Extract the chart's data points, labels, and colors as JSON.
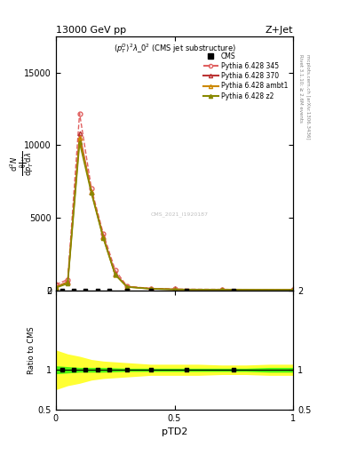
{
  "title": "13000 GeV pp",
  "title_right": "Z+Jet",
  "subtitle": "$(p_T^D)^2\\lambda\\_0^2$ (CMS jet substructure)",
  "xlabel": "pTD2",
  "ylabel_ratio": "Ratio to CMS",
  "right_label_top": "Rivet 3.1.10; ≥ 2.6M events",
  "right_label_bot": "mcplots.cern.ch [arXiv:1306.3436]",
  "watermark": "CMS_2021_I1920187",
  "py345_x": [
    0.0,
    0.05,
    0.1,
    0.15,
    0.2,
    0.25,
    0.3,
    0.4,
    0.5,
    0.7,
    1.0
  ],
  "py345_y": [
    400,
    750,
    12200,
    7000,
    3900,
    1400,
    280,
    140,
    90,
    75,
    55
  ],
  "py370_x": [
    0.0,
    0.05,
    0.1,
    0.15,
    0.2,
    0.25,
    0.3,
    0.4,
    0.5,
    0.7,
    1.0
  ],
  "py370_y": [
    250,
    600,
    10800,
    6800,
    3700,
    1150,
    260,
    120,
    75,
    55,
    45
  ],
  "pyambt1_x": [
    0.0,
    0.05,
    0.1,
    0.15,
    0.2,
    0.25,
    0.3,
    0.4,
    0.5,
    0.7,
    1.0
  ],
  "pyambt1_y": [
    220,
    550,
    10500,
    6800,
    3650,
    1100,
    250,
    115,
    70,
    52,
    42
  ],
  "pyz2_x": [
    0.0,
    0.05,
    0.1,
    0.15,
    0.2,
    0.25,
    0.3,
    0.4,
    0.5,
    0.7,
    1.0
  ],
  "pyz2_y": [
    180,
    480,
    10200,
    6700,
    3600,
    1080,
    240,
    110,
    65,
    50,
    38
  ],
  "cms_main_x": [
    0.025,
    0.075,
    0.125,
    0.175,
    0.225,
    0.3,
    0.4,
    0.55,
    0.75
  ],
  "cms_main_y": [
    0,
    0,
    0,
    0,
    0,
    0,
    0,
    0,
    0
  ],
  "ylim_main": [
    0,
    17500
  ],
  "yticks_main": [
    0,
    5000,
    10000,
    15000
  ],
  "ylim_ratio": [
    0.5,
    2.0
  ],
  "xlim": [
    0.0,
    1.0
  ],
  "color_py345": "#e06060",
  "color_py370": "#bb3333",
  "color_pyambt1": "#cc8800",
  "color_pyz2": "#888800",
  "color_cms": "black",
  "ratio_x": [
    0.0,
    0.05,
    0.1,
    0.15,
    0.2,
    0.3,
    0.4,
    0.5,
    0.6,
    0.7,
    0.8,
    0.9,
    1.0
  ],
  "yellow_lo": [
    0.75,
    0.8,
    0.83,
    0.87,
    0.89,
    0.91,
    0.93,
    0.93,
    0.93,
    0.94,
    0.94,
    0.93,
    0.93
  ],
  "yellow_hi": [
    1.25,
    1.2,
    1.17,
    1.13,
    1.11,
    1.09,
    1.07,
    1.07,
    1.07,
    1.06,
    1.06,
    1.07,
    1.07
  ],
  "green_lo": [
    0.95,
    0.96,
    0.97,
    0.97,
    0.97,
    0.98,
    0.98,
    0.98,
    0.98,
    0.98,
    0.98,
    0.97,
    0.97
  ],
  "green_hi": [
    1.05,
    1.04,
    1.03,
    1.03,
    1.03,
    1.02,
    1.02,
    1.02,
    1.02,
    1.02,
    1.02,
    1.03,
    1.03
  ],
  "cms_ratio_x": [
    0.025,
    0.075,
    0.125,
    0.175,
    0.225,
    0.3,
    0.4,
    0.55,
    0.75
  ]
}
